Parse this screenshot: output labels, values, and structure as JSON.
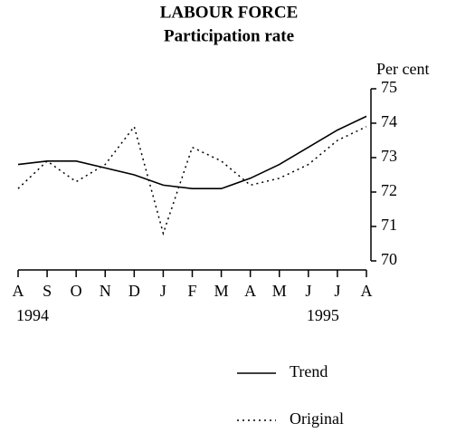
{
  "chart_data": {
    "type": "line",
    "title": "LABOUR FORCE",
    "subtitle": "Participation rate",
    "y_label": "Per cent",
    "categories": [
      "A",
      "S",
      "O",
      "N",
      "D",
      "J",
      "F",
      "M",
      "A",
      "M",
      "J",
      "J",
      "A"
    ],
    "annotations": [
      "1994",
      "1995"
    ],
    "series": [
      {
        "name": "Trend",
        "color": "#000000",
        "style": "solid",
        "values": [
          72.8,
          72.9,
          72.9,
          72.7,
          72.5,
          72.2,
          72.1,
          72.1,
          72.4,
          72.8,
          73.3,
          73.8,
          74.2
        ]
      },
      {
        "name": "Original",
        "color": "#000000",
        "style": "dotted",
        "values": [
          72.1,
          72.9,
          72.3,
          72.8,
          73.9,
          70.8,
          73.3,
          72.9,
          72.2,
          72.4,
          72.8,
          73.5,
          73.9
        ]
      }
    ],
    "ylim": [
      70,
      75
    ],
    "yticks": [
      70,
      71,
      72,
      73,
      74,
      75
    ],
    "y_axis_side": "right",
    "grid": false
  }
}
